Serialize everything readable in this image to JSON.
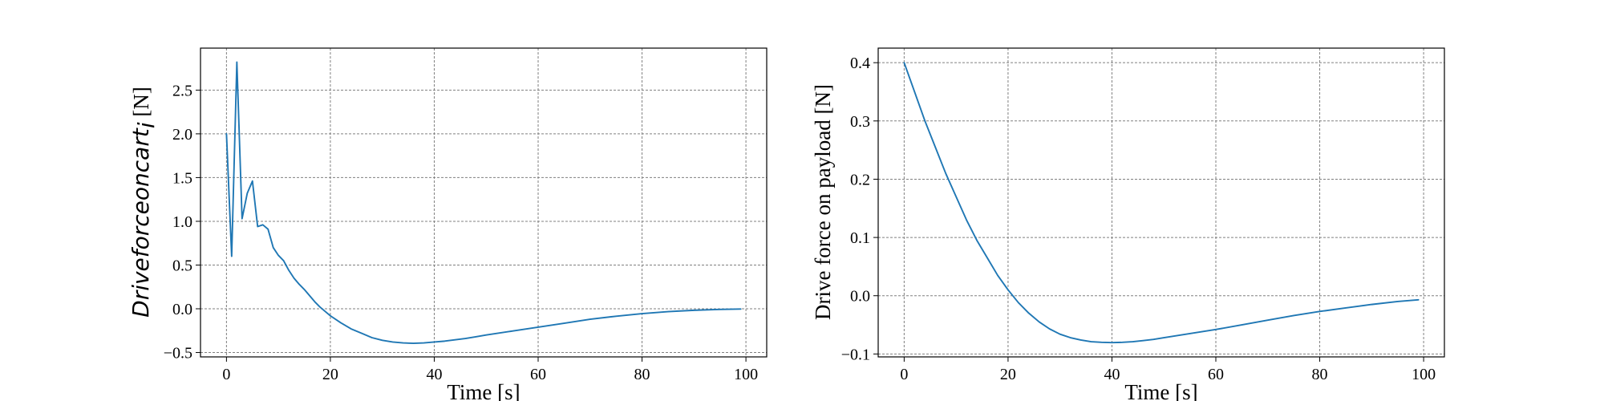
{
  "chart_data": [
    {
      "type": "line",
      "title": "",
      "xlabel": "Time [s]",
      "ylabel_math": "Driveforceoncart",
      "ylabel_sub": "i",
      "ylabel_unit": " [N]",
      "xlim": [
        -5,
        104
      ],
      "ylim": [
        -0.55,
        2.98
      ],
      "xticks": [
        0,
        20,
        40,
        60,
        80,
        100
      ],
      "yticks": [
        -0.5,
        0.0,
        0.5,
        1.0,
        1.5,
        2.0,
        2.5
      ],
      "ytick_labels": [
        "−0.5",
        "0.0",
        "0.5",
        "1.0",
        "1.5",
        "2.0",
        "2.5"
      ],
      "grid": true,
      "color": "#1f77b4",
      "series": [
        {
          "x": [
            0,
            1,
            2,
            3,
            4,
            5,
            6,
            7,
            8,
            9,
            10,
            11,
            12,
            13,
            14,
            15,
            16,
            17,
            18,
            19,
            20,
            22,
            24,
            26,
            28,
            30,
            32,
            34,
            36,
            38,
            40,
            42,
            44,
            46,
            48,
            50,
            55,
            60,
            65,
            70,
            75,
            80,
            85,
            90,
            95,
            99
          ],
          "y": [
            2.0,
            0.6,
            2.82,
            1.03,
            1.32,
            1.46,
            0.94,
            0.96,
            0.91,
            0.7,
            0.61,
            0.55,
            0.44,
            0.35,
            0.28,
            0.22,
            0.15,
            0.08,
            0.02,
            -0.03,
            -0.08,
            -0.16,
            -0.23,
            -0.28,
            -0.33,
            -0.36,
            -0.38,
            -0.39,
            -0.395,
            -0.39,
            -0.38,
            -0.37,
            -0.355,
            -0.34,
            -0.32,
            -0.3,
            -0.255,
            -0.21,
            -0.165,
            -0.12,
            -0.085,
            -0.055,
            -0.033,
            -0.017,
            -0.007,
            -0.003
          ]
        }
      ]
    },
    {
      "type": "line",
      "title": "",
      "xlabel": "Time [s]",
      "ylabel": "Drive force on payload [N]",
      "xlim": [
        -5,
        104
      ],
      "ylim": [
        -0.105,
        0.425
      ],
      "xticks": [
        0,
        20,
        40,
        60,
        80,
        100
      ],
      "yticks": [
        -0.1,
        0.0,
        0.1,
        0.2,
        0.3,
        0.4
      ],
      "ytick_labels": [
        "−0.1",
        "0.0",
        "0.1",
        "0.2",
        "0.3",
        "0.4"
      ],
      "grid": true,
      "color": "#1f77b4",
      "series": [
        {
          "x": [
            0,
            2,
            4,
            6,
            8,
            10,
            12,
            14,
            16,
            18,
            20,
            22,
            24,
            26,
            28,
            30,
            32,
            34,
            36,
            38,
            40,
            42,
            44,
            46,
            48,
            50,
            55,
            60,
            65,
            70,
            75,
            80,
            85,
            90,
            95,
            99
          ],
          "y": [
            0.4,
            0.35,
            0.3,
            0.255,
            0.21,
            0.17,
            0.13,
            0.095,
            0.065,
            0.035,
            0.01,
            -0.012,
            -0.03,
            -0.045,
            -0.057,
            -0.066,
            -0.072,
            -0.076,
            -0.079,
            -0.08,
            -0.0805,
            -0.08,
            -0.079,
            -0.077,
            -0.075,
            -0.072,
            -0.065,
            -0.058,
            -0.05,
            -0.042,
            -0.034,
            -0.027,
            -0.021,
            -0.015,
            -0.01,
            -0.007
          ]
        }
      ]
    }
  ]
}
